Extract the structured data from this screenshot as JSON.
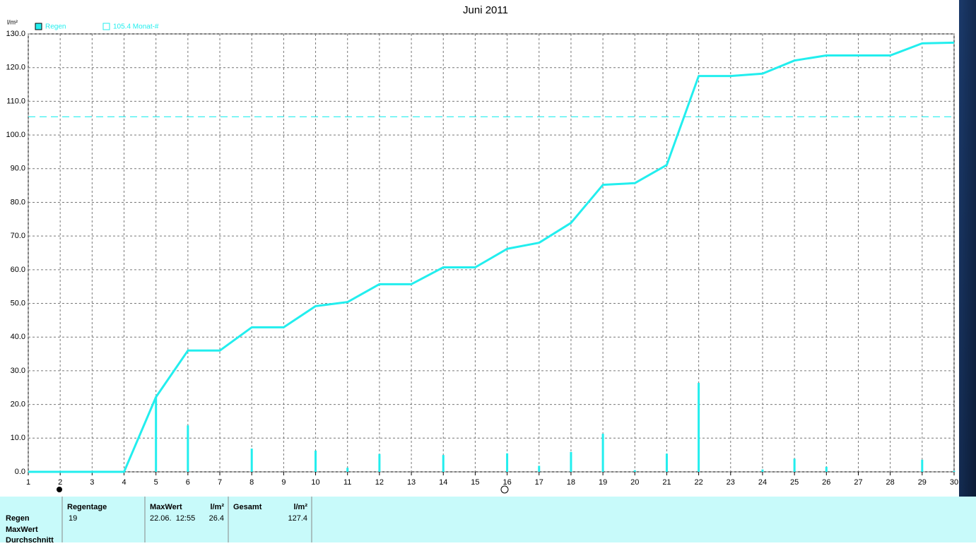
{
  "chart_data": {
    "type": "line",
    "title": "Juni 2011",
    "y_unit": "l/m²",
    "x": [
      1,
      2,
      3,
      4,
      5,
      6,
      7,
      8,
      9,
      10,
      11,
      12,
      13,
      14,
      15,
      16,
      17,
      18,
      19,
      20,
      21,
      22,
      23,
      24,
      25,
      26,
      27,
      28,
      29,
      30
    ],
    "series": [
      {
        "name": "Regen",
        "type": "bar",
        "color": "#22eeee",
        "values": [
          0,
          0,
          0,
          0,
          22.2,
          13.8,
          0,
          6.9,
          0,
          6.3,
          1.2,
          5.3,
          0,
          5.0,
          0,
          5.5,
          1.8,
          5.9,
          11.3,
          0.5,
          5.4,
          26.4,
          0,
          0.7,
          3.9,
          1.5,
          0,
          0,
          3.6,
          0.3
        ]
      },
      {
        "type": "line",
        "color": "#22eeee",
        "values": [
          0,
          0,
          0,
          0,
          22.2,
          36.0,
          36.0,
          42.9,
          42.9,
          49.2,
          50.4,
          55.7,
          55.7,
          60.7,
          60.7,
          66.2,
          68.0,
          73.9,
          85.2,
          85.7,
          91.1,
          117.5,
          117.5,
          118.2,
          122.1,
          123.6,
          123.6,
          123.6,
          127.2,
          127.4
        ]
      }
    ],
    "reference": {
      "name": "105.4 Monat-#",
      "value": 105.4,
      "color": "#22eeee"
    },
    "xlim": [
      1,
      30
    ],
    "xticks": [
      1,
      2,
      3,
      4,
      5,
      6,
      7,
      8,
      9,
      10,
      11,
      12,
      13,
      14,
      15,
      16,
      17,
      18,
      19,
      20,
      21,
      22,
      23,
      24,
      25,
      26,
      27,
      28,
      29,
      30
    ],
    "ylim": [
      0,
      130
    ],
    "yticks": [
      {
        "value": 0,
        "label": "0.0"
      },
      {
        "value": 10,
        "label": "10.0"
      },
      {
        "value": 20,
        "label": "20.0"
      },
      {
        "value": 30,
        "label": "30.0"
      },
      {
        "value": 40,
        "label": "40.0"
      },
      {
        "value": 50,
        "label": "50.0"
      },
      {
        "value": 60,
        "label": "60.0"
      },
      {
        "value": 70,
        "label": "70.0"
      },
      {
        "value": 80,
        "label": "80.0"
      },
      {
        "value": 90,
        "label": "90.0"
      },
      {
        "value": 100,
        "label": "100.0"
      },
      {
        "value": 110,
        "label": "110.0"
      },
      {
        "value": 120,
        "label": "120.0"
      },
      {
        "value": 130,
        "label": "130.0"
      }
    ],
    "grid": true
  },
  "table": {
    "row_labels": [
      "Regen",
      "MaxWert",
      "Durchschnitt"
    ],
    "headers": [
      "Regentage",
      "MaxWert",
      "l/m²",
      "Gesamt",
      "l/m²"
    ],
    "cells": [
      "19",
      "22.06.  12:55",
      "26.4",
      "127.4"
    ]
  }
}
